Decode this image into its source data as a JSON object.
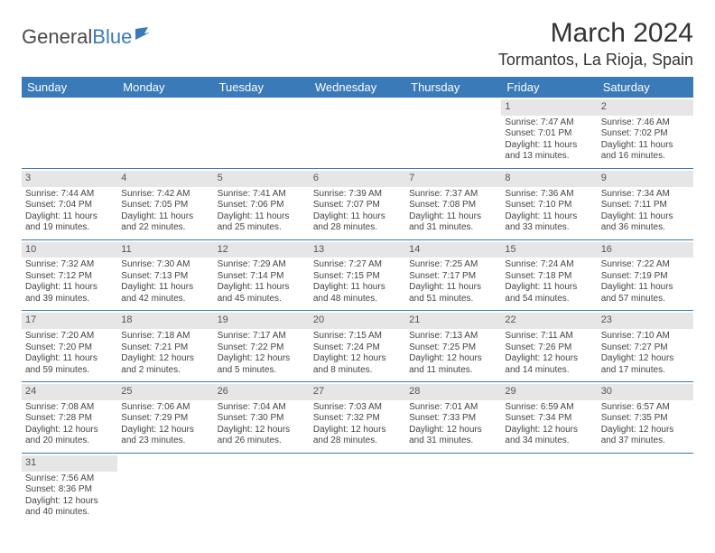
{
  "logo": {
    "text_a": "General",
    "text_b": "Blue"
  },
  "title": "March 2024",
  "location": "Tormantos, La Rioja, Spain",
  "colors": {
    "header_bg": "#3a7ab8",
    "header_text": "#ffffff",
    "daynum_bg": "#e6e6e6",
    "rule": "#3a7ab8",
    "body_text": "#444444"
  },
  "weekdays": [
    "Sunday",
    "Monday",
    "Tuesday",
    "Wednesday",
    "Thursday",
    "Friday",
    "Saturday"
  ],
  "weeks": [
    [
      null,
      null,
      null,
      null,
      null,
      {
        "n": "1",
        "sr": "Sunrise: 7:47 AM",
        "ss": "Sunset: 7:01 PM",
        "dl": "Daylight: 11 hours and 13 minutes."
      },
      {
        "n": "2",
        "sr": "Sunrise: 7:46 AM",
        "ss": "Sunset: 7:02 PM",
        "dl": "Daylight: 11 hours and 16 minutes."
      }
    ],
    [
      {
        "n": "3",
        "sr": "Sunrise: 7:44 AM",
        "ss": "Sunset: 7:04 PM",
        "dl": "Daylight: 11 hours and 19 minutes."
      },
      {
        "n": "4",
        "sr": "Sunrise: 7:42 AM",
        "ss": "Sunset: 7:05 PM",
        "dl": "Daylight: 11 hours and 22 minutes."
      },
      {
        "n": "5",
        "sr": "Sunrise: 7:41 AM",
        "ss": "Sunset: 7:06 PM",
        "dl": "Daylight: 11 hours and 25 minutes."
      },
      {
        "n": "6",
        "sr": "Sunrise: 7:39 AM",
        "ss": "Sunset: 7:07 PM",
        "dl": "Daylight: 11 hours and 28 minutes."
      },
      {
        "n": "7",
        "sr": "Sunrise: 7:37 AM",
        "ss": "Sunset: 7:08 PM",
        "dl": "Daylight: 11 hours and 31 minutes."
      },
      {
        "n": "8",
        "sr": "Sunrise: 7:36 AM",
        "ss": "Sunset: 7:10 PM",
        "dl": "Daylight: 11 hours and 33 minutes."
      },
      {
        "n": "9",
        "sr": "Sunrise: 7:34 AM",
        "ss": "Sunset: 7:11 PM",
        "dl": "Daylight: 11 hours and 36 minutes."
      }
    ],
    [
      {
        "n": "10",
        "sr": "Sunrise: 7:32 AM",
        "ss": "Sunset: 7:12 PM",
        "dl": "Daylight: 11 hours and 39 minutes."
      },
      {
        "n": "11",
        "sr": "Sunrise: 7:30 AM",
        "ss": "Sunset: 7:13 PM",
        "dl": "Daylight: 11 hours and 42 minutes."
      },
      {
        "n": "12",
        "sr": "Sunrise: 7:29 AM",
        "ss": "Sunset: 7:14 PM",
        "dl": "Daylight: 11 hours and 45 minutes."
      },
      {
        "n": "13",
        "sr": "Sunrise: 7:27 AM",
        "ss": "Sunset: 7:15 PM",
        "dl": "Daylight: 11 hours and 48 minutes."
      },
      {
        "n": "14",
        "sr": "Sunrise: 7:25 AM",
        "ss": "Sunset: 7:17 PM",
        "dl": "Daylight: 11 hours and 51 minutes."
      },
      {
        "n": "15",
        "sr": "Sunrise: 7:24 AM",
        "ss": "Sunset: 7:18 PM",
        "dl": "Daylight: 11 hours and 54 minutes."
      },
      {
        "n": "16",
        "sr": "Sunrise: 7:22 AM",
        "ss": "Sunset: 7:19 PM",
        "dl": "Daylight: 11 hours and 57 minutes."
      }
    ],
    [
      {
        "n": "17",
        "sr": "Sunrise: 7:20 AM",
        "ss": "Sunset: 7:20 PM",
        "dl": "Daylight: 11 hours and 59 minutes."
      },
      {
        "n": "18",
        "sr": "Sunrise: 7:18 AM",
        "ss": "Sunset: 7:21 PM",
        "dl": "Daylight: 12 hours and 2 minutes."
      },
      {
        "n": "19",
        "sr": "Sunrise: 7:17 AM",
        "ss": "Sunset: 7:22 PM",
        "dl": "Daylight: 12 hours and 5 minutes."
      },
      {
        "n": "20",
        "sr": "Sunrise: 7:15 AM",
        "ss": "Sunset: 7:24 PM",
        "dl": "Daylight: 12 hours and 8 minutes."
      },
      {
        "n": "21",
        "sr": "Sunrise: 7:13 AM",
        "ss": "Sunset: 7:25 PM",
        "dl": "Daylight: 12 hours and 11 minutes."
      },
      {
        "n": "22",
        "sr": "Sunrise: 7:11 AM",
        "ss": "Sunset: 7:26 PM",
        "dl": "Daylight: 12 hours and 14 minutes."
      },
      {
        "n": "23",
        "sr": "Sunrise: 7:10 AM",
        "ss": "Sunset: 7:27 PM",
        "dl": "Daylight: 12 hours and 17 minutes."
      }
    ],
    [
      {
        "n": "24",
        "sr": "Sunrise: 7:08 AM",
        "ss": "Sunset: 7:28 PM",
        "dl": "Daylight: 12 hours and 20 minutes."
      },
      {
        "n": "25",
        "sr": "Sunrise: 7:06 AM",
        "ss": "Sunset: 7:29 PM",
        "dl": "Daylight: 12 hours and 23 minutes."
      },
      {
        "n": "26",
        "sr": "Sunrise: 7:04 AM",
        "ss": "Sunset: 7:30 PM",
        "dl": "Daylight: 12 hours and 26 minutes."
      },
      {
        "n": "27",
        "sr": "Sunrise: 7:03 AM",
        "ss": "Sunset: 7:32 PM",
        "dl": "Daylight: 12 hours and 28 minutes."
      },
      {
        "n": "28",
        "sr": "Sunrise: 7:01 AM",
        "ss": "Sunset: 7:33 PM",
        "dl": "Daylight: 12 hours and 31 minutes."
      },
      {
        "n": "29",
        "sr": "Sunrise: 6:59 AM",
        "ss": "Sunset: 7:34 PM",
        "dl": "Daylight: 12 hours and 34 minutes."
      },
      {
        "n": "30",
        "sr": "Sunrise: 6:57 AM",
        "ss": "Sunset: 7:35 PM",
        "dl": "Daylight: 12 hours and 37 minutes."
      }
    ],
    [
      {
        "n": "31",
        "sr": "Sunrise: 7:56 AM",
        "ss": "Sunset: 8:36 PM",
        "dl": "Daylight: 12 hours and 40 minutes."
      },
      null,
      null,
      null,
      null,
      null,
      null
    ]
  ]
}
